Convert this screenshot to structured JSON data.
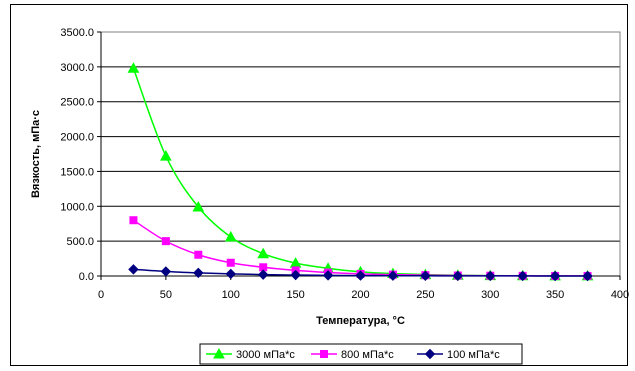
{
  "chart_data": {
    "type": "line",
    "title": "",
    "xlabel": "Температура, °C",
    "ylabel": "Вязкость, мПа·с",
    "xlim": [
      0,
      400
    ],
    "ylim": [
      0,
      3500
    ],
    "xticks": [
      0,
      50,
      100,
      150,
      200,
      250,
      300,
      350,
      400
    ],
    "xtick_labels": [
      "0",
      "50",
      "100",
      "150",
      "200",
      "250",
      "300",
      "350",
      "400"
    ],
    "yticks": [
      0,
      500,
      1000,
      1500,
      2000,
      2500,
      3000,
      3500
    ],
    "ytick_labels": [
      "0.0",
      "500.0",
      "1000.0",
      "1500.0",
      "2000.0",
      "2500.0",
      "3000.0",
      "3500.0"
    ],
    "grid": "horizontal",
    "legend_position": "bottom",
    "x": [
      25,
      50,
      75,
      100,
      125,
      150,
      175,
      200,
      225,
      250,
      275,
      300,
      325,
      350,
      375
    ],
    "series": [
      {
        "name": "3000 мПа*с",
        "color": "#00ff00",
        "marker": "triangle",
        "values": [
          2980,
          1720,
          990,
          560,
          320,
          185,
          110,
          60,
          35,
          20,
          10,
          5,
          3,
          2,
          1
        ]
      },
      {
        "name": "800 мПа*с",
        "color": "#ff00ff",
        "marker": "square",
        "values": [
          800,
          500,
          305,
          190,
          125,
          80,
          50,
          30,
          20,
          12,
          7,
          4,
          2,
          1,
          1
        ]
      },
      {
        "name": "100 мПа*с",
        "color": "#000080",
        "marker": "diamond",
        "values": [
          95,
          65,
          45,
          30,
          20,
          14,
          9,
          6,
          4,
          3,
          2,
          1,
          1,
          0,
          0
        ]
      }
    ]
  }
}
